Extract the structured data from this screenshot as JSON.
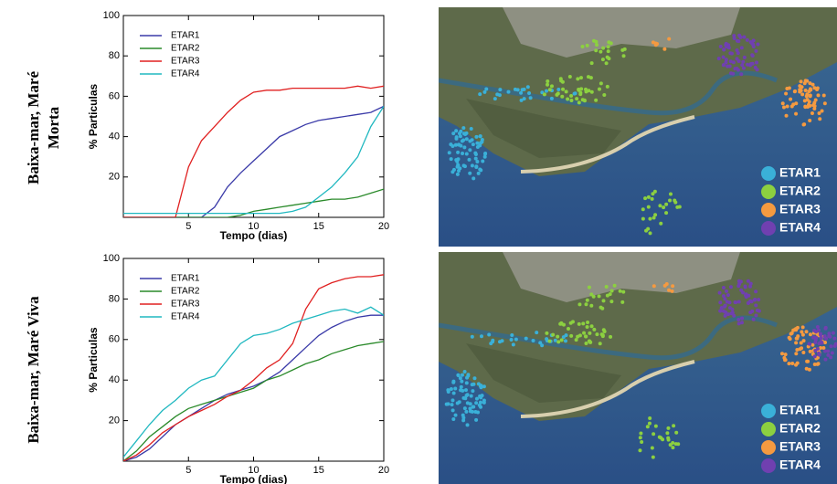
{
  "row_labels": [
    [
      "Baixa-mar, Maré",
      "Morta"
    ],
    [
      "Baixa-mar, Maré Viva"
    ]
  ],
  "chart_data": [
    {
      "type": "line",
      "xlabel": "Tempo (dias)",
      "ylabel": "% Particulas",
      "x": [
        0,
        1,
        2,
        3,
        4,
        5,
        6,
        7,
        8,
        9,
        10,
        11,
        12,
        13,
        14,
        15,
        16,
        17,
        18,
        19,
        20
      ],
      "xlim": [
        0,
        20
      ],
      "xticks": [
        5,
        10,
        15,
        20
      ],
      "ylim": [
        0,
        100
      ],
      "yticks": [
        20,
        40,
        60,
        80,
        100
      ],
      "legend": "upper left",
      "series": [
        {
          "name": "ETAR1",
          "color": "#3a3aa8",
          "values": [
            0,
            0,
            0,
            0,
            0,
            0,
            0,
            5,
            15,
            22,
            28,
            34,
            40,
            43,
            46,
            48,
            49,
            50,
            51,
            52,
            55
          ]
        },
        {
          "name": "ETAR2",
          "color": "#2a8a2a",
          "values": [
            0,
            0,
            0,
            0,
            0,
            0,
            0,
            0,
            0,
            1,
            3,
            4,
            5,
            6,
            7,
            8,
            9,
            9,
            10,
            12,
            14
          ]
        },
        {
          "name": "ETAR3",
          "color": "#e02020",
          "values": [
            0,
            0,
            0,
            0,
            0,
            25,
            38,
            45,
            52,
            58,
            62,
            63,
            63,
            64,
            64,
            64,
            64,
            64,
            65,
            64,
            65
          ]
        },
        {
          "name": "ETAR4",
          "color": "#20b8c0",
          "values": [
            2,
            2,
            2,
            2,
            2,
            2,
            2,
            2,
            2,
            2,
            2,
            2,
            2,
            3,
            5,
            10,
            15,
            22,
            30,
            45,
            55
          ]
        }
      ]
    },
    {
      "type": "line",
      "xlabel": "Tempo (dias)",
      "ylabel": "% Particulas",
      "x": [
        0,
        1,
        2,
        3,
        4,
        5,
        6,
        7,
        8,
        9,
        10,
        11,
        12,
        13,
        14,
        15,
        16,
        17,
        18,
        19,
        20
      ],
      "xlim": [
        0,
        20
      ],
      "xticks": [
        5,
        10,
        15,
        20
      ],
      "ylim": [
        0,
        100
      ],
      "yticks": [
        20,
        40,
        60,
        80,
        100
      ],
      "legend": "upper left",
      "series": [
        {
          "name": "ETAR1",
          "color": "#3a3aa8",
          "values": [
            0,
            2,
            6,
            12,
            18,
            22,
            26,
            30,
            33,
            35,
            37,
            40,
            44,
            50,
            56,
            62,
            66,
            69,
            71,
            72,
            72
          ]
        },
        {
          "name": "ETAR2",
          "color": "#2a8a2a",
          "values": [
            0,
            5,
            12,
            17,
            22,
            26,
            28,
            30,
            32,
            34,
            36,
            40,
            42,
            45,
            48,
            50,
            53,
            55,
            57,
            58,
            59
          ]
        },
        {
          "name": "ETAR3",
          "color": "#e02020",
          "values": [
            0,
            3,
            8,
            14,
            18,
            22,
            25,
            28,
            32,
            35,
            40,
            46,
            50,
            58,
            75,
            85,
            88,
            90,
            91,
            91,
            92
          ]
        },
        {
          "name": "ETAR4",
          "color": "#20b8c0",
          "values": [
            2,
            10,
            18,
            25,
            30,
            36,
            40,
            42,
            50,
            58,
            62,
            63,
            65,
            68,
            70,
            72,
            74,
            75,
            73,
            76,
            72
          ]
        }
      ]
    }
  ],
  "maps": [
    {
      "legend": [
        {
          "name": "ETAR1",
          "color": "#3ab0d8"
        },
        {
          "name": "ETAR2",
          "color": "#8cd040"
        },
        {
          "name": "ETAR3",
          "color": "#f59a40"
        },
        {
          "name": "ETAR4",
          "color": "#7040b0"
        }
      ]
    },
    {
      "legend": [
        {
          "name": "ETAR1",
          "color": "#3ab0d8"
        },
        {
          "name": "ETAR2",
          "color": "#8cd040"
        },
        {
          "name": "ETAR3",
          "color": "#f59a40"
        },
        {
          "name": "ETAR4",
          "color": "#7040b0"
        }
      ]
    }
  ]
}
